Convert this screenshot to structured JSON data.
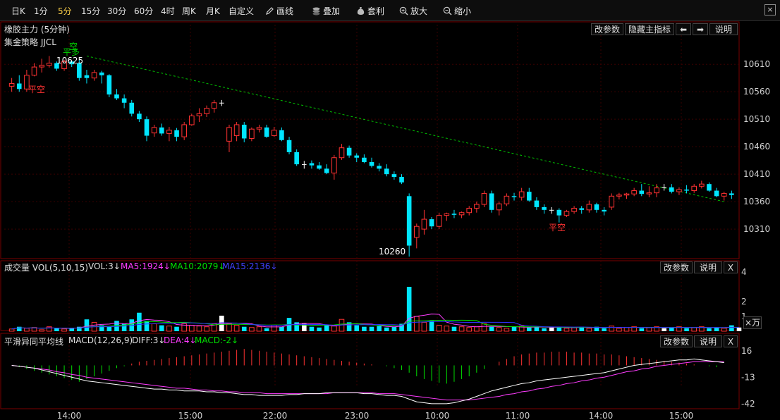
{
  "toolbar": {
    "items": [
      {
        "label": "日K",
        "active": false
      },
      {
        "label": "1分",
        "active": false
      },
      {
        "label": "5分",
        "active": true
      },
      {
        "label": "15分",
        "active": false
      },
      {
        "label": "30分",
        "active": false
      },
      {
        "label": "60分",
        "active": false
      },
      {
        "label": "4时",
        "active": false
      },
      {
        "label": "周K",
        "active": false
      },
      {
        "label": "月K",
        "active": false
      },
      {
        "label": "自定义",
        "active": false
      }
    ],
    "tools": [
      {
        "label": "画线",
        "icon": "pencil-icon"
      },
      {
        "label": "叠加",
        "icon": "stack-icon"
      },
      {
        "label": "套利",
        "icon": "money-bag-icon"
      },
      {
        "label": "放大",
        "icon": "zoom-in-icon"
      },
      {
        "label": "缩小",
        "icon": "zoom-out-icon"
      }
    ],
    "close_label": "×"
  },
  "main": {
    "title": "橡胶主力 (5分钟)",
    "strategy": "集金策略 JJCL",
    "buttons": {
      "params": "改参数",
      "hide": "隐藏主指标",
      "prev": "⬅",
      "next": "➡",
      "help": "说明"
    },
    "annotations": {
      "high": "10625",
      "low": "10260",
      "ping_kong_1": "平空",
      "ping_kong_2": "平空",
      "kong": "空",
      "ping_duo": "平多"
    }
  },
  "volume": {
    "title": "成交量 VOL(5,10,15)",
    "vol": "VOL:3↓",
    "ma5": "MA5:1924↓",
    "ma10": "MA10:2079↓",
    "ma15": "MA15:2136↓",
    "unit": "×万",
    "buttons": {
      "params": "改参数",
      "help": "说明",
      "close": "X"
    }
  },
  "macd": {
    "title": "平滑异同平均线",
    "params": "MACD(12,26,9)",
    "diff": "DIFF:3↓",
    "dea": "DEA:4↓",
    "macd": "MACD:-2↓",
    "buttons": {
      "params": "改参数",
      "help": "说明",
      "close": "X"
    }
  },
  "colors": {
    "up": "#ff3232",
    "down": "#00e5ff",
    "ma5": "#ff3cff",
    "ma10": "#00e000",
    "ma15": "#3030ff",
    "diff": "#ffffff",
    "dea": "#ff3cff",
    "trendline": "#00c000",
    "grid": "#3a0000",
    "text_yellow": "#ffd24a"
  },
  "chart_data": [
    {
      "type": "candlestick",
      "title": "橡胶主力 (5分钟)",
      "y_ticks": [
        10310,
        10360,
        10410,
        10460,
        10510,
        10560,
        10610
      ],
      "ylim": [
        10255,
        10650
      ],
      "x_ticks": [
        "14:00",
        "15:00",
        "22:00",
        "23:00",
        "10:00",
        "11:00",
        "14:00",
        "15:00"
      ],
      "ohlc": [
        [
          10570,
          10585,
          10560,
          10575
        ],
        [
          10575,
          10590,
          10560,
          10565
        ],
        [
          10565,
          10600,
          10560,
          10590
        ],
        [
          10590,
          10612,
          10588,
          10605
        ],
        [
          10605,
          10620,
          10595,
          10608
        ],
        [
          10608,
          10625,
          10604,
          10612
        ],
        [
          10612,
          10615,
          10598,
          10602
        ],
        [
          10602,
          10618,
          10598,
          10615
        ],
        [
          10615,
          10616,
          10605,
          10610
        ],
        [
          10612,
          10618,
          10580,
          10585
        ],
        [
          10590,
          10600,
          10575,
          10585
        ],
        [
          10585,
          10600,
          10580,
          10595
        ],
        [
          10595,
          10598,
          10575,
          10590
        ],
        [
          10590,
          10592,
          10550,
          10555
        ],
        [
          10555,
          10565,
          10545,
          10548
        ],
        [
          10548,
          10555,
          10530,
          10540
        ],
        [
          10540,
          10545,
          10515,
          10520
        ],
        [
          10520,
          10525,
          10505,
          10510
        ],
        [
          10510,
          10515,
          10470,
          10480
        ],
        [
          10485,
          10500,
          10478,
          10495
        ],
        [
          10495,
          10502,
          10480,
          10484
        ],
        [
          10484,
          10496,
          10470,
          10490
        ],
        [
          10490,
          10494,
          10470,
          10478
        ],
        [
          10478,
          10505,
          10472,
          10500
        ],
        [
          10500,
          10520,
          10498,
          10516
        ],
        [
          10516,
          10530,
          10505,
          10520
        ],
        [
          10520,
          10535,
          10514,
          10530
        ],
        [
          10530,
          10545,
          10522,
          10540
        ],
        [
          10540,
          10545,
          10534,
          10540
        ],
        [
          10470,
          10500,
          10450,
          10495
        ],
        [
          10480,
          10505,
          10470,
          10500
        ],
        [
          10500,
          10505,
          10468,
          10475
        ],
        [
          10475,
          10495,
          10470,
          10492
        ],
        [
          10492,
          10500,
          10486,
          10495
        ],
        [
          10495,
          10500,
          10476,
          10478
        ],
        [
          10480,
          10496,
          10478,
          10490
        ],
        [
          10490,
          10495,
          10470,
          10472
        ],
        [
          10472,
          10478,
          10446,
          10450
        ],
        [
          10450,
          10455,
          10425,
          10428
        ],
        [
          10428,
          10434,
          10420,
          10428
        ],
        [
          10430,
          10435,
          10420,
          10426
        ],
        [
          10426,
          10432,
          10418,
          10420
        ],
        [
          10420,
          10428,
          10410,
          10412
        ],
        [
          10412,
          10445,
          10400,
          10440
        ],
        [
          10440,
          10465,
          10436,
          10458
        ],
        [
          10458,
          10462,
          10440,
          10444
        ],
        [
          10444,
          10448,
          10432,
          10440
        ],
        [
          10440,
          10446,
          10430,
          10432
        ],
        [
          10432,
          10440,
          10422,
          10425
        ],
        [
          10425,
          10430,
          10415,
          10420
        ],
        [
          10420,
          10428,
          10406,
          10410
        ],
        [
          10410,
          10415,
          10400,
          10405
        ],
        [
          10405,
          10410,
          10392,
          10395
        ],
        [
          10370,
          10375,
          10260,
          10280
        ],
        [
          10295,
          10320,
          10275,
          10315
        ],
        [
          10310,
          10345,
          10300,
          10328
        ],
        [
          10328,
          10332,
          10310,
          10315
        ],
        [
          10315,
          10340,
          10310,
          10335
        ],
        [
          10335,
          10340,
          10325,
          10338
        ],
        [
          10338,
          10345,
          10330,
          10336
        ],
        [
          10336,
          10342,
          10330,
          10340
        ],
        [
          10340,
          10352,
          10335,
          10348
        ],
        [
          10348,
          10360,
          10340,
          10355
        ],
        [
          10355,
          10380,
          10350,
          10375
        ],
        [
          10375,
          10380,
          10340,
          10345
        ],
        [
          10345,
          10360,
          10335,
          10356
        ],
        [
          10356,
          10375,
          10352,
          10370
        ],
        [
          10370,
          10376,
          10362,
          10368
        ],
        [
          10368,
          10385,
          10362,
          10378
        ],
        [
          10378,
          10385,
          10360,
          10362
        ],
        [
          10362,
          10368,
          10345,
          10350
        ],
        [
          10350,
          10355,
          10338,
          10345
        ],
        [
          10345,
          10350,
          10338,
          10345
        ],
        [
          10345,
          10348,
          10322,
          10335
        ],
        [
          10335,
          10345,
          10332,
          10342
        ],
        [
          10342,
          10352,
          10338,
          10348
        ],
        [
          10348,
          10352,
          10338,
          10345
        ],
        [
          10345,
          10362,
          10340,
          10355
        ],
        [
          10355,
          10358,
          10340,
          10345
        ],
        [
          10345,
          10350,
          10335,
          10342
        ],
        [
          10350,
          10375,
          10345,
          10370
        ],
        [
          10370,
          10376,
          10364,
          10372
        ],
        [
          10372,
          10376,
          10365,
          10374
        ],
        [
          10374,
          10385,
          10370,
          10380
        ],
        [
          10380,
          10392,
          10370,
          10374
        ],
        [
          10374,
          10388,
          10368,
          10376
        ],
        [
          10376,
          10392,
          10368,
          10385
        ],
        [
          10385,
          10392,
          10380,
          10386
        ],
        [
          10386,
          10392,
          10375,
          10378
        ],
        [
          10378,
          10386,
          10372,
          10382
        ],
        [
          10382,
          10390,
          10375,
          10380
        ],
        [
          10380,
          10392,
          10376,
          10388
        ],
        [
          10388,
          10398,
          10384,
          10392
        ],
        [
          10392,
          10395,
          10378,
          10380
        ],
        [
          10380,
          10385,
          10368,
          10370
        ],
        [
          10370,
          10378,
          10362,
          10375
        ],
        [
          10375,
          10380,
          10365,
          10372
        ]
      ],
      "trendline": [
        [
          10,
          10625
        ],
        [
          95,
          10360
        ]
      ]
    },
    {
      "type": "bar",
      "title": "成交量 VOL(5,10,15)",
      "y_ticks": [
        1,
        2,
        4
      ],
      "ylim": [
        0,
        4
      ],
      "values": [
        0.15,
        0.3,
        0.2,
        0.25,
        0.1,
        0.3,
        0.2,
        0.15,
        0.2,
        0.3,
        0.8,
        0.6,
        0.4,
        0.3,
        0.7,
        0.5,
        0.8,
        1.25,
        0.7,
        0.5,
        0.4,
        0.35,
        0.3,
        0.5,
        0.4,
        0.35,
        0.3,
        0.5,
        1.05,
        0.5,
        0.4,
        0.3,
        0.25,
        0.3,
        0.2,
        0.4,
        0.3,
        0.9,
        0.6,
        0.5,
        0.3,
        0.25,
        0.4,
        0.35,
        0.8,
        0.6,
        0.4,
        0.3,
        0.3,
        0.35,
        0.25,
        0.3,
        0.5,
        3.0,
        1.0,
        0.6,
        0.7,
        0.4,
        0.35,
        0.3,
        0.3,
        0.25,
        0.3,
        0.5,
        0.3,
        0.25,
        0.2,
        0.3,
        0.35,
        0.25,
        0.3,
        0.2,
        0.25,
        0.3,
        0.2,
        0.25,
        0.3,
        0.2,
        0.3,
        0.2,
        0.35,
        0.2,
        0.25,
        0.3,
        0.2,
        0.25,
        0.3,
        0.2,
        0.25,
        0.3,
        0.2,
        0.25,
        0.3,
        0.2,
        0.25,
        0.2,
        0.4,
        0.25
      ]
    },
    {
      "type": "line",
      "title": "平滑异同平均线",
      "y_ticks": [
        16,
        -13,
        -42
      ],
      "ylim": [
        -46,
        22
      ],
      "diff": [
        0,
        -1,
        -2,
        -3,
        -5,
        -7,
        -9,
        -11,
        -13,
        -15,
        -17,
        -18,
        -19,
        -20,
        -21,
        -22,
        -23,
        -24,
        -25,
        -26,
        -26,
        -27,
        -27,
        -28,
        -28,
        -28,
        -29,
        -29,
        -30,
        -30,
        -31,
        -32,
        -32,
        -33,
        -33,
        -33,
        -33,
        -32,
        -32,
        -31,
        -31,
        -31,
        -30,
        -30,
        -30,
        -30,
        -30,
        -31,
        -31,
        -32,
        -33,
        -33,
        -34,
        -37,
        -40,
        -41,
        -42,
        -42,
        -42,
        -41,
        -39,
        -37,
        -34,
        -31,
        -28,
        -26,
        -24,
        -22,
        -20,
        -19,
        -17,
        -16,
        -15,
        -14,
        -13,
        -12,
        -11,
        -10,
        -9,
        -8,
        -6,
        -4,
        -2,
        0,
        1,
        2,
        3,
        4,
        5,
        6,
        6,
        7,
        6,
        5,
        4,
        3
      ],
      "dea": [
        0,
        -1,
        -2,
        -3,
        -4,
        -5,
        -7,
        -8,
        -10,
        -11,
        -13,
        -14,
        -15,
        -16,
        -17,
        -18,
        -19,
        -20,
        -21,
        -22,
        -23,
        -24,
        -25,
        -25,
        -26,
        -27,
        -27,
        -28,
        -28,
        -29,
        -29,
        -30,
        -30,
        -30,
        -31,
        -31,
        -31,
        -31,
        -31,
        -31,
        -31,
        -31,
        -31,
        -30,
        -30,
        -30,
        -30,
        -30,
        -30,
        -31,
        -31,
        -31,
        -32,
        -33,
        -34,
        -35,
        -36,
        -37,
        -38,
        -38,
        -38,
        -38,
        -37,
        -36,
        -35,
        -34,
        -32,
        -31,
        -29,
        -28,
        -26,
        -25,
        -23,
        -22,
        -20,
        -19,
        -17,
        -16,
        -14,
        -13,
        -11,
        -9,
        -7,
        -6,
        -4,
        -3,
        -1,
        0,
        1,
        2,
        3,
        4,
        4,
        4,
        4,
        4
      ],
      "macd": [
        0,
        -2,
        -4,
        -6,
        -8,
        -10,
        -12,
        -14,
        -16,
        -18,
        -15,
        -12,
        -9,
        -6,
        -3,
        -1,
        2,
        4,
        5,
        6,
        7,
        8,
        9,
        10,
        11,
        12,
        13,
        14,
        15,
        16,
        17,
        18,
        17,
        16,
        15,
        14,
        13,
        12,
        11,
        10,
        9,
        8,
        7,
        6,
        5,
        4,
        3,
        2,
        1,
        0,
        -1,
        -3,
        -5,
        -8,
        -12,
        -15,
        -17,
        -19,
        -20,
        -18,
        -15,
        -12,
        -8,
        -4,
        0,
        4,
        7,
        10,
        12,
        13,
        14,
        14,
        15,
        15,
        15,
        14,
        14,
        13,
        13,
        12,
        12,
        11,
        10,
        9,
        8,
        7,
        6,
        5,
        4,
        3,
        2,
        1,
        0,
        -1,
        -2
      ]
    }
  ]
}
